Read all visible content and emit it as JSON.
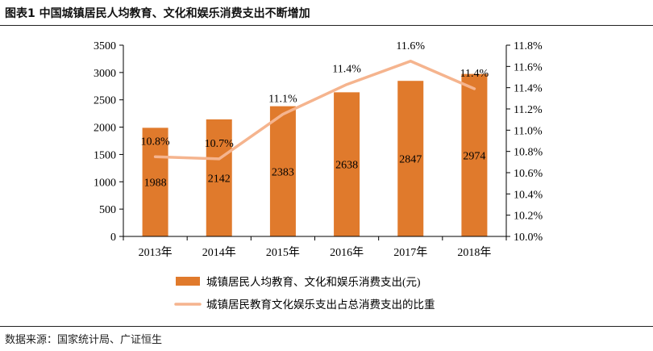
{
  "header": {
    "title": "图表1 中国城镇居民人均教育、文化和娱乐消费支出不断增加"
  },
  "footer": {
    "source": "数据来源：国家统计局、广证恒生"
  },
  "chart_data": {
    "type": "bar",
    "categories": [
      "2013年",
      "2014年",
      "2015年",
      "2016年",
      "2017年",
      "2018年"
    ],
    "series": [
      {
        "name": "城镇居民人均教育、文化和娱乐消费支出(元)",
        "type": "bar",
        "axis": "left",
        "color": "#E07A2C",
        "values": [
          1988,
          2142,
          2383,
          2638,
          2847,
          2974
        ],
        "labels": [
          "1988",
          "2142",
          "2383",
          "2638",
          "2847",
          "2974"
        ]
      },
      {
        "name": "城镇居民教育文化娱乐支出占总消费支出的比重",
        "type": "line",
        "axis": "right",
        "color": "#F5B48E",
        "values": [
          10.75,
          10.73,
          11.15,
          11.43,
          11.65,
          11.39
        ],
        "labels": [
          "10.8%",
          "10.7%",
          "11.1%",
          "11.4%",
          "11.6%",
          "11.4%"
        ]
      }
    ],
    "y_left": {
      "min": 0,
      "max": 3500,
      "ticks": [
        "0",
        "500",
        "1000",
        "1500",
        "2000",
        "2500",
        "3000",
        "3500"
      ]
    },
    "y_right": {
      "min": 10.0,
      "max": 11.8,
      "ticks": [
        "10.0%",
        "10.2%",
        "10.4%",
        "10.6%",
        "10.8%",
        "11.0%",
        "11.2%",
        "11.4%",
        "11.6%",
        "11.8%"
      ]
    },
    "grid": false,
    "legend_position": "bottom"
  }
}
